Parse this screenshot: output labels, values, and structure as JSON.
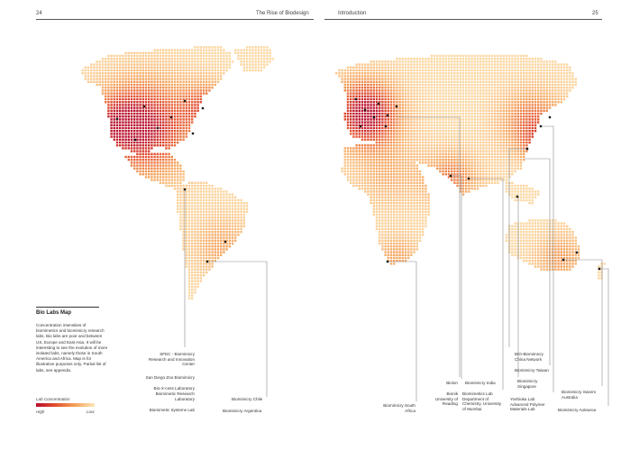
{
  "header": {
    "page_left": "24",
    "book_title": "The Rise of Biodesign",
    "chapter": "Introduction",
    "page_right": "25"
  },
  "colors": {
    "high": "#b80f2c",
    "mid": "#e2502f",
    "low_mid": "#f4a25a",
    "low": "#fde8b8",
    "grid_empty": "#f2f2f2",
    "marker": "#1a1a1a"
  },
  "info": {
    "title": "Bio Labs Map",
    "description": "Concentration intensities of biomimetics and biomimicry research labs. Bio labs are poor and between US, Europe and East Asia. It will be interesting to see the evolution of more isolated labs, namely those in South America and Africa. Map is for illustrative purposes only. Partial list of labs, see appendix."
  },
  "legend": {
    "title": "Lab Concentration",
    "high": "High",
    "low": "Low"
  },
  "labels": {
    "sfec": "SFEC - Biomimicry\nResearch and Innovation\nCenter",
    "sandiego": "San Diego Zoo Biomimicry",
    "bioxcess": "Bio-X-cess Laboratory",
    "biomimetic_research": "Biomimetic Research\nLaboratory",
    "biomimetic_systems": "Biomimetic Systems Lab",
    "chile": "Biomimicry Chile",
    "argentina": "Biomimicry Argentina",
    "south_africa": "Biomimicry South\nAfrica",
    "biolon": "Biolon",
    "bionik_reading": "Bionik\nUniversity of\nReading",
    "india": "Biomimicry India",
    "biomimetics_lab": "Biomimetics Lab\nDepartment of\nChemistry, University\nof Mumbai",
    "china": "BIO-Biomimicry\nChina Network",
    "taiwan": "Biomimicry Taiwan",
    "singapore": "Biomimicry\nSingapore",
    "yoshioka": "Yoshioka Lab\nAdvanced Polymer\nMaterials Lab",
    "swarm": "Biomimicry Swarm\nAustralia",
    "aotearoa": "Biomimicry Aotearoa"
  }
}
